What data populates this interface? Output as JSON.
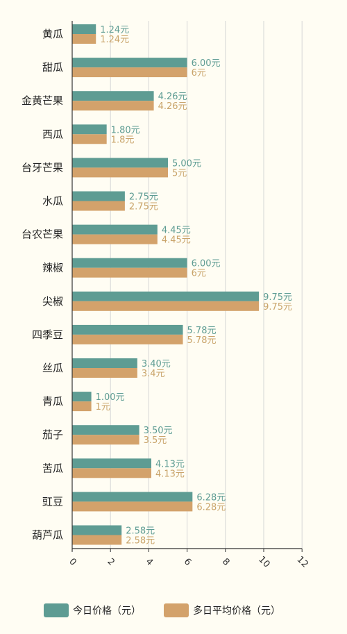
{
  "colors": {
    "today": "#5e9c93",
    "avg": "#d3a26b",
    "today_text": "#5e9c93",
    "avg_text": "#c9a46a",
    "grid": "#d6d6d6",
    "axis": "#333333"
  },
  "chart_data": {
    "type": "bar",
    "orientation": "horizontal",
    "categories": [
      "黄瓜",
      "甜瓜",
      "金黄芒果",
      "西瓜",
      "台牙芒果",
      "水瓜",
      "台农芒果",
      "辣椒",
      "尖椒",
      "四季豆",
      "丝瓜",
      "青瓜",
      "茄子",
      "苦瓜",
      "豇豆",
      "葫芦瓜"
    ],
    "series": [
      {
        "name": "今日价格（元）",
        "values": [
          1.24,
          6.0,
          4.26,
          1.8,
          5.0,
          2.75,
          4.45,
          6.0,
          9.75,
          5.78,
          3.4,
          1.0,
          3.5,
          4.13,
          6.28,
          2.58
        ],
        "labels": [
          "1.24元",
          "6.00元",
          "4.26元",
          "1.80元",
          "5.00元",
          "2.75元",
          "4.45元",
          "6.00元",
          "9.75元",
          "5.78元",
          "3.40元",
          "1.00元",
          "3.50元",
          "4.13元",
          "6.28元",
          "2.58元"
        ]
      },
      {
        "name": "多日平均价格（元）",
        "values": [
          1.24,
          6,
          4.26,
          1.8,
          5,
          2.75,
          4.45,
          6,
          9.75,
          5.78,
          3.4,
          1,
          3.5,
          4.13,
          6.28,
          2.58
        ],
        "labels": [
          "1.24元",
          "6元",
          "4.26元",
          "1.8元",
          "5元",
          "2.75元",
          "4.45元",
          "6元",
          "9.75元",
          "5.78元",
          "3.4元",
          "1元",
          "3.5元",
          "4.13元",
          "6.28元",
          "2.58元"
        ]
      }
    ],
    "xlim": [
      0,
      12
    ],
    "xticks": [
      "0",
      "2",
      "4",
      "6",
      "8",
      "10",
      "12"
    ],
    "grid": true,
    "legend": "bottom",
    "title": "",
    "xlabel": "",
    "ylabel": ""
  }
}
